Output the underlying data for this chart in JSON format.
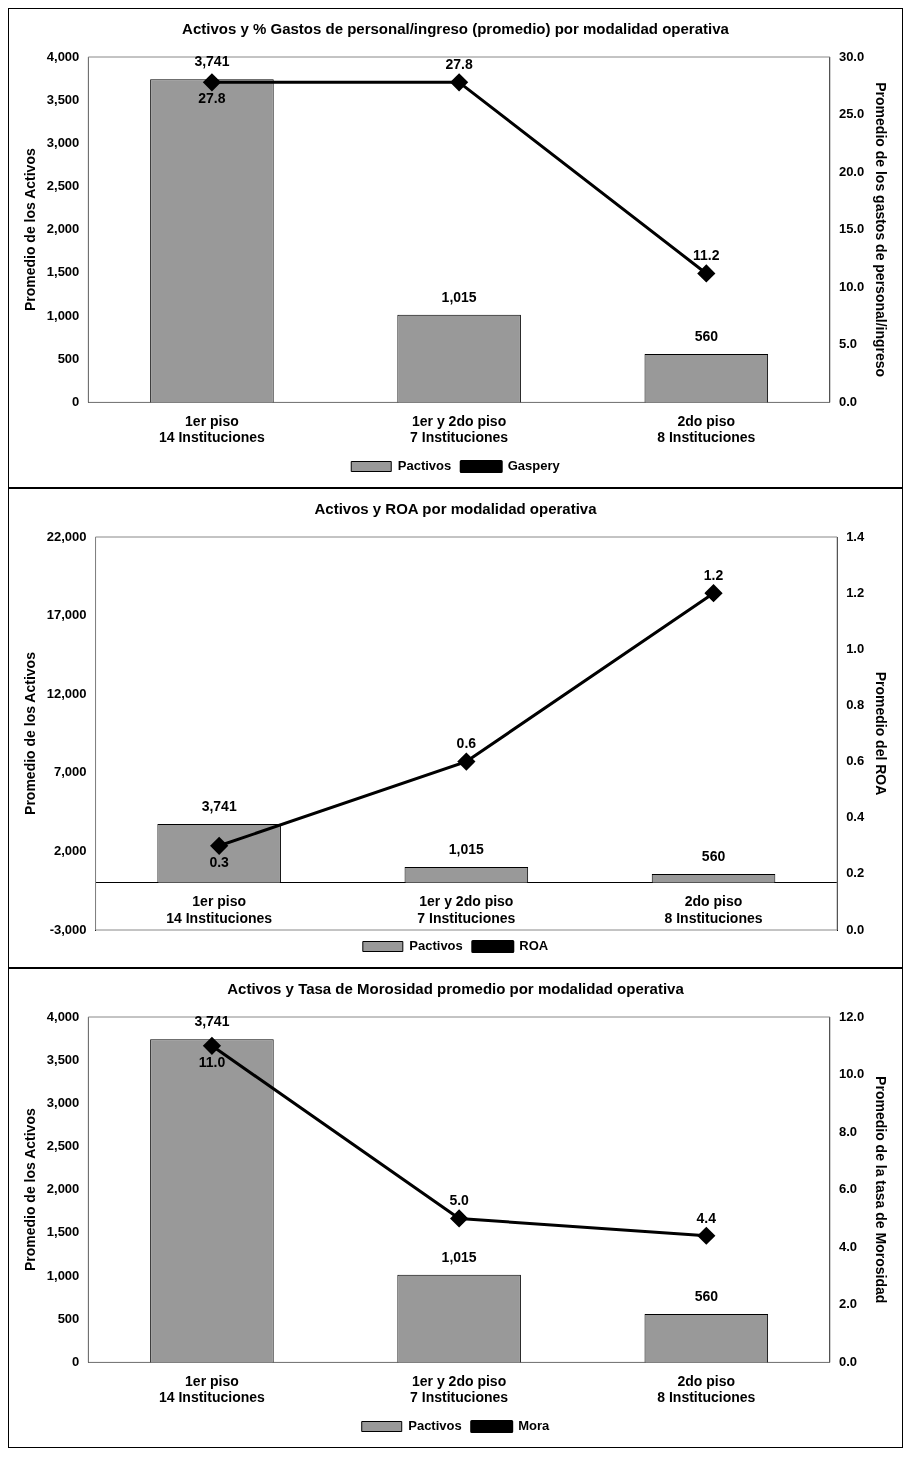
{
  "chart_data": [
    {
      "type": "bar",
      "title": "Activos y % Gastos de personal/ingreso (promedio) por modalidad operativa",
      "categories": [
        "1er piso\n14 Instituciones",
        "1er y 2do piso\n7 Instituciones",
        "2do piso\n8 Instituciones"
      ],
      "ylabel": "Promedio de los Activos",
      "y2label": "Promedio de los gastos de personal/ingreso",
      "ylim": [
        0,
        4000
      ],
      "yticks": [
        {
          "value": 0,
          "label": "0"
        },
        {
          "value": 500,
          "label": "500"
        },
        {
          "value": 1000,
          "label": "1,000"
        },
        {
          "value": 1500,
          "label": "1,500"
        },
        {
          "value": 2000,
          "label": "2,000"
        },
        {
          "value": 2500,
          "label": "2,500"
        },
        {
          "value": 3000,
          "label": "3,000"
        },
        {
          "value": 3500,
          "label": "3,500"
        },
        {
          "value": 4000,
          "label": "4,000"
        }
      ],
      "y2lim": [
        0,
        30
      ],
      "y2ticks": [
        {
          "value": 0,
          "label": "0.0"
        },
        {
          "value": 5,
          "label": "5.0"
        },
        {
          "value": 10,
          "label": "10.0"
        },
        {
          "value": 15,
          "label": "15.0"
        },
        {
          "value": 20,
          "label": "20.0"
        },
        {
          "value": 25,
          "label": "25.0"
        },
        {
          "value": 30,
          "label": "30.0"
        }
      ],
      "grid": false,
      "legend": "bottom",
      "series": [
        {
          "name": "Pactivos",
          "color": "#999999",
          "values": [
            3741,
            1015,
            560
          ],
          "value_labels": [
            "3,741",
            "1,015",
            "560"
          ]
        },
        {
          "name": "Gaspery",
          "type": "line",
          "axis": "y2",
          "color": "#000000",
          "marker": "diamond",
          "line_style": "solid",
          "values": [
            27.8,
            27.8,
            11.2
          ],
          "value_labels": [
            "27.8",
            "27.8",
            "11.2"
          ]
        }
      ]
    },
    {
      "type": "bar",
      "title": "Activos y ROA por modalidad operativa",
      "categories": [
        "1er piso\n14 Instituciones",
        "1er y 2do piso\n7 Instituciones",
        "2do piso\n8 Instituciones"
      ],
      "ylabel": "Promedio de los Activos",
      "y2label": "Promedio del ROA",
      "ylim": [
        -3000,
        22000
      ],
      "yticks": [
        {
          "value": -3000,
          "label": "-3,000"
        },
        {
          "value": 2000,
          "label": "2,000"
        },
        {
          "value": 7000,
          "label": "7,000"
        },
        {
          "value": 12000,
          "label": "12,000"
        },
        {
          "value": 17000,
          "label": "17,000"
        },
        {
          "value": 22000,
          "label": "22,000"
        }
      ],
      "y2lim": [
        0,
        1.4
      ],
      "y2ticks": [
        {
          "value": 0,
          "label": "0.0"
        },
        {
          "value": 0.2,
          "label": "0.2"
        },
        {
          "value": 0.4,
          "label": "0.4"
        },
        {
          "value": 0.6,
          "label": "0.6"
        },
        {
          "value": 0.8,
          "label": "0.8"
        },
        {
          "value": 1,
          "label": "1.0"
        },
        {
          "value": 1.2,
          "label": "1.2"
        },
        {
          "value": 1.4,
          "label": "1.4"
        }
      ],
      "grid": false,
      "legend": "bottom",
      "series": [
        {
          "name": "Pactivos",
          "color": "#999999",
          "values": [
            3741,
            1015,
            560
          ],
          "value_labels": [
            "3,741",
            "1,015",
            "560"
          ]
        },
        {
          "name": "ROA",
          "type": "line",
          "axis": "y2",
          "color": "#000000",
          "marker": "diamond",
          "line_style": "solid",
          "values": [
            0.3,
            0.6,
            1.2
          ],
          "value_labels": [
            "0.3",
            "0.6",
            "1.2"
          ]
        }
      ]
    },
    {
      "type": "bar",
      "title": "Activos y Tasa de Morosidad promedio por modalidad operativa",
      "categories": [
        "1er piso\n14 Instituciones",
        "1er y 2do piso\n7 Instituciones",
        "2do piso\n8 Instituciones"
      ],
      "ylabel": "Promedio de los Activos",
      "y2label": "Promedio de la tasa de Morosidad",
      "ylim": [
        0,
        4000
      ],
      "yticks": [
        {
          "value": 0,
          "label": "0"
        },
        {
          "value": 500,
          "label": "500"
        },
        {
          "value": 1000,
          "label": "1,000"
        },
        {
          "value": 1500,
          "label": "1,500"
        },
        {
          "value": 2000,
          "label": "2,000"
        },
        {
          "value": 2500,
          "label": "2,500"
        },
        {
          "value": 3000,
          "label": "3,000"
        },
        {
          "value": 3500,
          "label": "3,500"
        },
        {
          "value": 4000,
          "label": "4,000"
        }
      ],
      "y2lim": [
        0,
        12
      ],
      "y2ticks": [
        {
          "value": 0,
          "label": "0.0"
        },
        {
          "value": 2,
          "label": "2.0"
        },
        {
          "value": 4,
          "label": "4.0"
        },
        {
          "value": 6,
          "label": "6.0"
        },
        {
          "value": 8,
          "label": "8.0"
        },
        {
          "value": 10,
          "label": "10.0"
        },
        {
          "value": 12,
          "label": "12.0"
        }
      ],
      "grid": false,
      "legend": "bottom",
      "series": [
        {
          "name": "Pactivos",
          "color": "#999999",
          "values": [
            3741,
            1015,
            560
          ],
          "value_labels": [
            "3,741",
            "1,015",
            "560"
          ]
        },
        {
          "name": "Mora",
          "type": "line",
          "axis": "y2",
          "color": "#000000",
          "marker": "diamond",
          "line_style": "solid",
          "values": [
            11,
            5,
            4.4
          ],
          "value_labels": [
            "11.0",
            "5.0",
            "4.4"
          ]
        }
      ]
    }
  ]
}
